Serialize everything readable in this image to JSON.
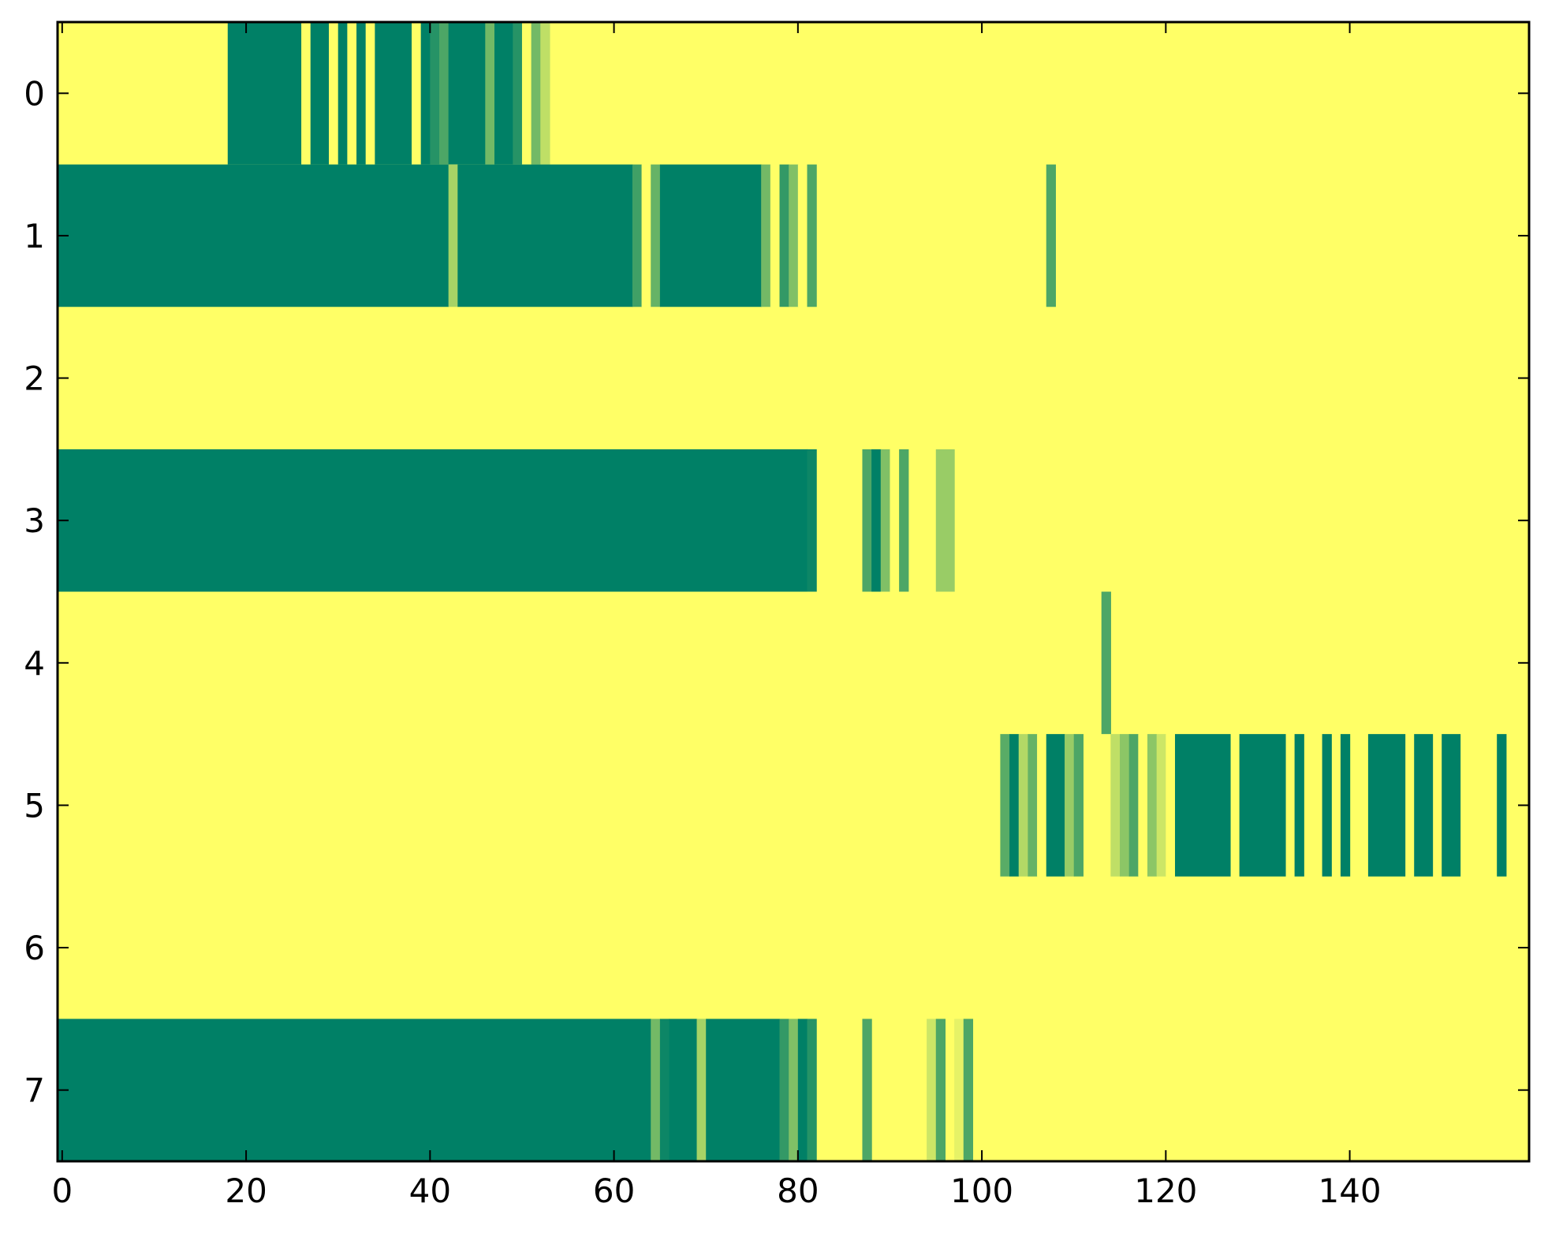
{
  "chart_data": {
    "type": "heatmap",
    "title": "",
    "xlabel": "",
    "ylabel": "",
    "xlim": [
      -0.5,
      159.5
    ],
    "rows": [
      0,
      1,
      2,
      3,
      4,
      5,
      6,
      7
    ],
    "x_ticks": [
      0,
      20,
      40,
      60,
      80,
      100,
      120,
      140
    ],
    "y_ticks": [
      0,
      1,
      2,
      3,
      4,
      5,
      6,
      7
    ],
    "x_tick_labels": [
      "0",
      "20",
      "40",
      "60",
      "80",
      "100",
      "120",
      "140"
    ],
    "y_tick_labels": [
      "0",
      "1",
      "2",
      "3",
      "4",
      "5",
      "6",
      "7"
    ],
    "colormap": "summer",
    "background_level": 1.0,
    "colors": {
      "low": "#008066",
      "high": "#ffff66"
    },
    "cells": [
      {
        "row": 0,
        "x0": 18,
        "x1": 26,
        "v": 0.0
      },
      {
        "row": 0,
        "x0": 26,
        "x1": 27,
        "v": 1.0
      },
      {
        "row": 0,
        "x0": 27,
        "x1": 29,
        "v": 0.0
      },
      {
        "row": 0,
        "x0": 29,
        "x1": 30,
        "v": 1.0
      },
      {
        "row": 0,
        "x0": 30,
        "x1": 31,
        "v": 0.0
      },
      {
        "row": 0,
        "x0": 31,
        "x1": 32,
        "v": 1.0
      },
      {
        "row": 0,
        "x0": 32,
        "x1": 33,
        "v": 0.0
      },
      {
        "row": 0,
        "x0": 33,
        "x1": 34,
        "v": 1.0
      },
      {
        "row": 0,
        "x0": 34,
        "x1": 38,
        "v": 0.0
      },
      {
        "row": 0,
        "x0": 38,
        "x1": 39,
        "v": 1.0
      },
      {
        "row": 0,
        "x0": 39,
        "x1": 40,
        "v": 0.0
      },
      {
        "row": 0,
        "x0": 40,
        "x1": 41,
        "v": 0.15
      },
      {
        "row": 0,
        "x0": 41,
        "x1": 42,
        "v": 0.3
      },
      {
        "row": 0,
        "x0": 42,
        "x1": 46,
        "v": 0.0
      },
      {
        "row": 0,
        "x0": 46,
        "x1": 47,
        "v": 0.45
      },
      {
        "row": 0,
        "x0": 47,
        "x1": 49,
        "v": 0.0
      },
      {
        "row": 0,
        "x0": 49,
        "x1": 50,
        "v": 0.15
      },
      {
        "row": 0,
        "x0": 50,
        "x1": 51,
        "v": 1.0
      },
      {
        "row": 0,
        "x0": 51,
        "x1": 52,
        "v": 0.45
      },
      {
        "row": 0,
        "x0": 52,
        "x1": 53,
        "v": 0.75
      },
      {
        "row": 1,
        "x0": -0.5,
        "x1": 42,
        "v": 0.0
      },
      {
        "row": 1,
        "x0": 42,
        "x1": 43,
        "v": 0.65
      },
      {
        "row": 1,
        "x0": 43,
        "x1": 62,
        "v": 0.0
      },
      {
        "row": 1,
        "x0": 62,
        "x1": 63,
        "v": 0.25
      },
      {
        "row": 1,
        "x0": 63,
        "x1": 64,
        "v": 1.0
      },
      {
        "row": 1,
        "x0": 64,
        "x1": 65,
        "v": 0.4
      },
      {
        "row": 1,
        "x0": 65,
        "x1": 76,
        "v": 0.0
      },
      {
        "row": 1,
        "x0": 76,
        "x1": 77,
        "v": 0.45
      },
      {
        "row": 1,
        "x0": 77,
        "x1": 78,
        "v": 1.0
      },
      {
        "row": 1,
        "x0": 78,
        "x1": 79,
        "v": 0.2
      },
      {
        "row": 1,
        "x0": 79,
        "x1": 80,
        "v": 0.5
      },
      {
        "row": 1,
        "x0": 80,
        "x1": 81,
        "v": 1.0
      },
      {
        "row": 1,
        "x0": 81,
        "x1": 82,
        "v": 0.3
      },
      {
        "row": 1,
        "x0": 107,
        "x1": 108,
        "v": 0.3
      },
      {
        "row": 3,
        "x0": -0.5,
        "x1": 81,
        "v": 0.0
      },
      {
        "row": 3,
        "x0": 81,
        "x1": 82,
        "v": 0.05
      },
      {
        "row": 3,
        "x0": 87,
        "x1": 88,
        "v": 0.3
      },
      {
        "row": 3,
        "x0": 88,
        "x1": 89,
        "v": 0.0
      },
      {
        "row": 3,
        "x0": 89,
        "x1": 90,
        "v": 0.5
      },
      {
        "row": 3,
        "x0": 90,
        "x1": 91,
        "v": 1.0
      },
      {
        "row": 3,
        "x0": 91,
        "x1": 92,
        "v": 0.3
      },
      {
        "row": 3,
        "x0": 95,
        "x1": 97,
        "v": 0.6
      },
      {
        "row": 4,
        "x0": 113,
        "x1": 114,
        "v": 0.3
      },
      {
        "row": 5,
        "x0": 102,
        "x1": 103,
        "v": 0.35
      },
      {
        "row": 5,
        "x0": 103,
        "x1": 104,
        "v": 0.0
      },
      {
        "row": 5,
        "x0": 104,
        "x1": 105,
        "v": 0.7
      },
      {
        "row": 5,
        "x0": 105,
        "x1": 106,
        "v": 0.4
      },
      {
        "row": 5,
        "x0": 106,
        "x1": 107,
        "v": 1.0
      },
      {
        "row": 5,
        "x0": 107,
        "x1": 109,
        "v": 0.0
      },
      {
        "row": 5,
        "x0": 109,
        "x1": 110,
        "v": 0.6
      },
      {
        "row": 5,
        "x0": 110,
        "x1": 111,
        "v": 0.3
      },
      {
        "row": 5,
        "x0": 114,
        "x1": 115,
        "v": 0.75
      },
      {
        "row": 5,
        "x0": 115,
        "x1": 116,
        "v": 0.55
      },
      {
        "row": 5,
        "x0": 116,
        "x1": 117,
        "v": 0.3
      },
      {
        "row": 5,
        "x0": 117,
        "x1": 118,
        "v": 1.0
      },
      {
        "row": 5,
        "x0": 118,
        "x1": 119,
        "v": 0.55
      },
      {
        "row": 5,
        "x0": 119,
        "x1": 120,
        "v": 0.8
      },
      {
        "row": 5,
        "x0": 120,
        "x1": 121,
        "v": 1.0
      },
      {
        "row": 5,
        "x0": 121,
        "x1": 127,
        "v": 0.0
      },
      {
        "row": 5,
        "x0": 128,
        "x1": 133,
        "v": 0.0
      },
      {
        "row": 5,
        "x0": 134,
        "x1": 135,
        "v": 0.0
      },
      {
        "row": 5,
        "x0": 137,
        "x1": 138,
        "v": 0.0
      },
      {
        "row": 5,
        "x0": 139,
        "x1": 140,
        "v": 0.0
      },
      {
        "row": 5,
        "x0": 142,
        "x1": 146,
        "v": 0.0
      },
      {
        "row": 5,
        "x0": 147,
        "x1": 149,
        "v": 0.0
      },
      {
        "row": 5,
        "x0": 150,
        "x1": 152,
        "v": 0.0
      },
      {
        "row": 5,
        "x0": 156,
        "x1": 157,
        "v": 0.0
      },
      {
        "row": 7,
        "x0": -0.5,
        "x1": 64,
        "v": 0.0
      },
      {
        "row": 7,
        "x0": 64,
        "x1": 65,
        "v": 0.45
      },
      {
        "row": 7,
        "x0": 65,
        "x1": 66,
        "v": 0.05
      },
      {
        "row": 7,
        "x0": 66,
        "x1": 69,
        "v": 0.0
      },
      {
        "row": 7,
        "x0": 69,
        "x1": 70,
        "v": 0.65
      },
      {
        "row": 7,
        "x0": 70,
        "x1": 78,
        "v": 0.0
      },
      {
        "row": 7,
        "x0": 78,
        "x1": 79,
        "v": 0.2
      },
      {
        "row": 7,
        "x0": 79,
        "x1": 80,
        "v": 0.5
      },
      {
        "row": 7,
        "x0": 80,
        "x1": 81,
        "v": 0.0
      },
      {
        "row": 7,
        "x0": 81,
        "x1": 82,
        "v": 0.15
      },
      {
        "row": 7,
        "x0": 87,
        "x1": 88,
        "v": 0.3
      },
      {
        "row": 7,
        "x0": 94,
        "x1": 95,
        "v": 0.8
      },
      {
        "row": 7,
        "x0": 95,
        "x1": 96,
        "v": 0.3
      },
      {
        "row": 7,
        "x0": 97,
        "x1": 98,
        "v": 0.9
      },
      {
        "row": 7,
        "x0": 98,
        "x1": 99,
        "v": 0.3
      }
    ]
  }
}
